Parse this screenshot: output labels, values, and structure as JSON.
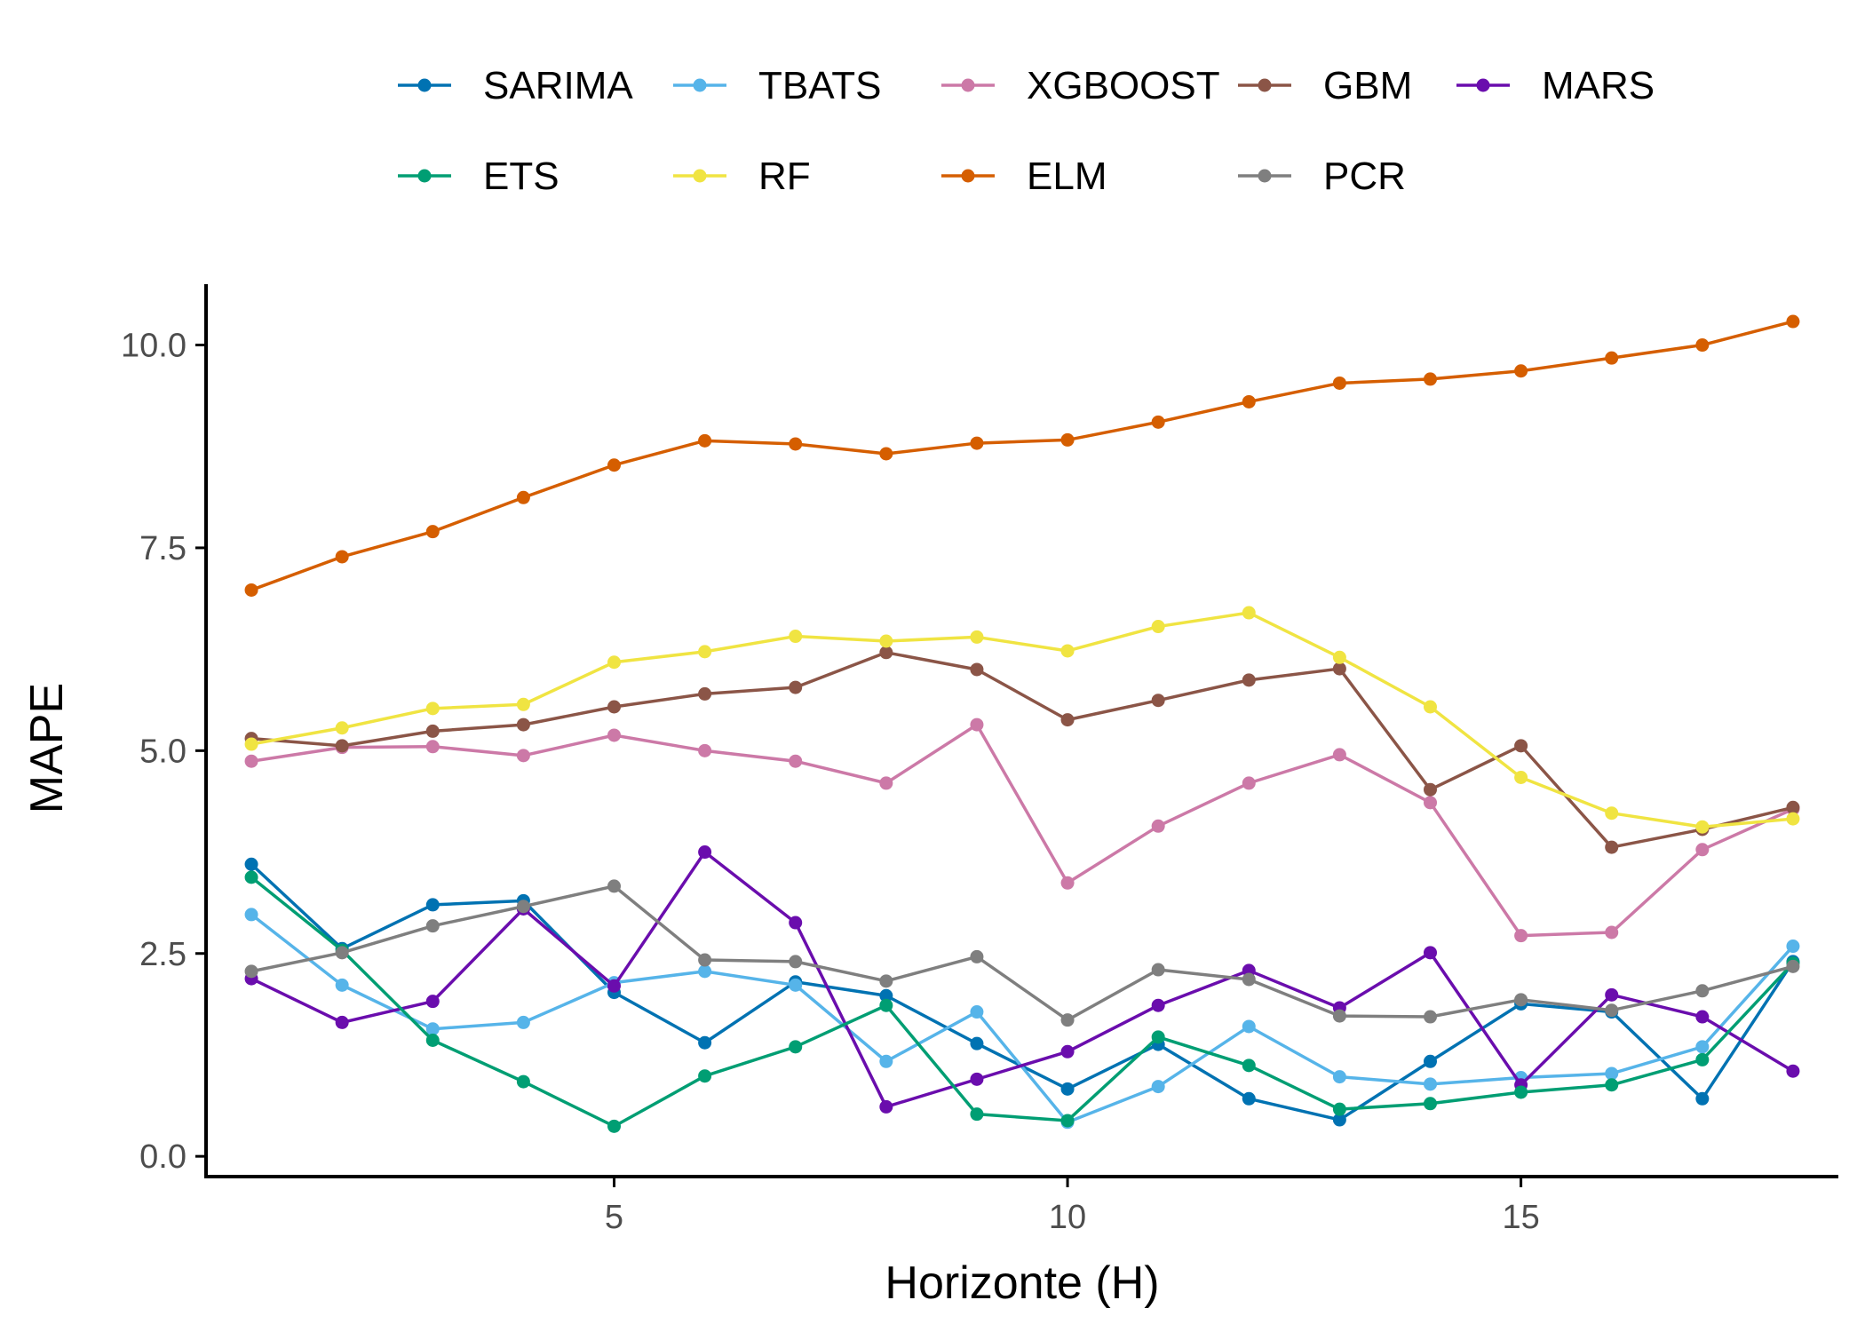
{
  "chart_data": {
    "type": "line",
    "xlabel": "Horizonte (H)",
    "ylabel": "MAPE",
    "xlim": [
      0.5,
      18.5
    ],
    "ylim": [
      -0.25,
      10.75
    ],
    "xticks": [
      5,
      10,
      15
    ],
    "xtick_labels": [
      "5",
      "10",
      "15"
    ],
    "yticks": [
      0,
      2.5,
      5,
      7.5,
      10
    ],
    "ytick_labels": [
      "0.0",
      "2.5",
      "5.0",
      "7.5",
      "10.0"
    ],
    "grid": false,
    "legend_position": "top",
    "x": [
      1,
      2,
      3,
      4,
      5,
      6,
      7,
      8,
      9,
      10,
      11,
      12,
      13,
      14,
      15,
      16,
      17,
      18
    ],
    "series": [
      {
        "name": "SARIMA",
        "color": "#0072B2",
        "values": [
          3.6,
          2.56,
          3.1,
          3.15,
          2.02,
          1.4,
          2.15,
          1.98,
          1.39,
          0.83,
          1.38,
          0.71,
          0.45,
          1.17,
          1.88,
          1.78,
          0.71,
          2.4
        ]
      },
      {
        "name": "TBATS",
        "color": "#56B4E9",
        "values": [
          2.98,
          2.11,
          1.57,
          1.65,
          2.14,
          2.28,
          2.11,
          1.17,
          1.78,
          0.42,
          0.86,
          1.6,
          0.98,
          0.89,
          0.97,
          1.02,
          1.35,
          2.59
        ]
      },
      {
        "name": "XGBOOST",
        "color": "#CC79A7",
        "values": [
          4.87,
          5.04,
          5.05,
          4.94,
          5.19,
          5.0,
          4.87,
          4.6,
          5.32,
          3.37,
          4.07,
          4.6,
          4.95,
          4.36,
          2.72,
          2.76,
          3.78,
          4.28
        ]
      },
      {
        "name": "GBM",
        "color": "#8B5547",
        "values": [
          5.15,
          5.06,
          5.24,
          5.32,
          5.54,
          5.7,
          5.78,
          6.21,
          6.0,
          5.38,
          5.62,
          5.87,
          6.01,
          4.52,
          5.06,
          3.81,
          4.03,
          4.3
        ]
      },
      {
        "name": "MARS",
        "color": "#6A0DAD",
        "values": [
          2.19,
          1.65,
          1.91,
          3.05,
          2.1,
          3.75,
          2.88,
          0.61,
          0.95,
          1.29,
          1.86,
          2.29,
          1.83,
          2.51,
          0.88,
          1.99,
          1.72,
          1.05
        ]
      },
      {
        "name": "ETS",
        "color": "#009E73",
        "values": [
          3.44,
          2.54,
          1.43,
          0.92,
          0.37,
          0.99,
          1.35,
          1.86,
          0.52,
          0.44,
          1.47,
          1.12,
          0.58,
          0.65,
          0.79,
          0.88,
          1.19,
          2.38
        ]
      },
      {
        "name": "RF",
        "color": "#F0E442",
        "values": [
          5.08,
          5.28,
          5.52,
          5.57,
          6.09,
          6.22,
          6.41,
          6.35,
          6.4,
          6.23,
          6.53,
          6.7,
          6.15,
          5.54,
          4.67,
          4.23,
          4.06,
          4.16
        ]
      },
      {
        "name": "ELM",
        "color": "#D55E00",
        "values": [
          6.98,
          7.39,
          7.7,
          8.12,
          8.52,
          8.82,
          8.78,
          8.66,
          8.79,
          8.83,
          9.05,
          9.3,
          9.53,
          9.58,
          9.68,
          9.84,
          10.0,
          10.29
        ]
      },
      {
        "name": "PCR",
        "color": "#7F7F7F",
        "values": [
          2.28,
          2.51,
          2.84,
          3.08,
          3.33,
          2.42,
          2.4,
          2.16,
          2.46,
          1.68,
          2.3,
          2.18,
          1.73,
          1.72,
          1.93,
          1.8,
          2.04,
          2.34
        ]
      }
    ]
  }
}
